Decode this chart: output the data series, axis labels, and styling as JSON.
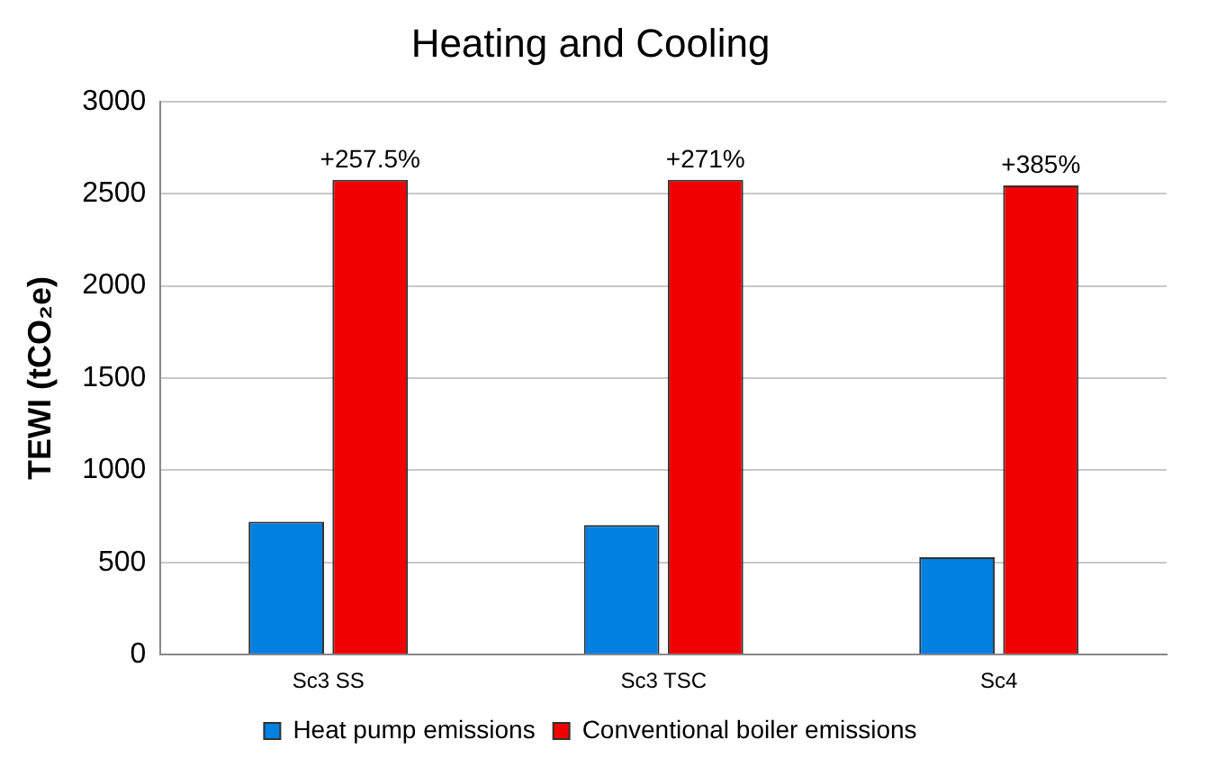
{
  "chart_data": {
    "type": "bar",
    "title": "Heating and Cooling",
    "ylabel": "TEWI (tCO₂e)",
    "categories": [
      "Sc3 SS",
      "Sc3 TSC",
      "Sc4"
    ],
    "series": [
      {
        "name": "Heat pump emissions",
        "color": "#0080e0",
        "values": [
          721,
          703,
          528
        ]
      },
      {
        "name": "Conventional boiler emissions",
        "color": "#f00000",
        "values": [
          2575,
          2575,
          2545
        ]
      }
    ],
    "ylim": [
      0,
      3000
    ],
    "yticks": [
      0,
      500,
      1000,
      1500,
      2000,
      2500,
      3000
    ],
    "grid": "y",
    "legend": "bottom",
    "annotations": [
      {
        "text": "+257.5%",
        "x": "Sc3 SS",
        "y": 2575
      },
      {
        "text": "+271%",
        "x": "Sc3 TSC",
        "y": 2575
      },
      {
        "text": "+385%",
        "x": "Sc4",
        "y": 2545
      }
    ]
  }
}
